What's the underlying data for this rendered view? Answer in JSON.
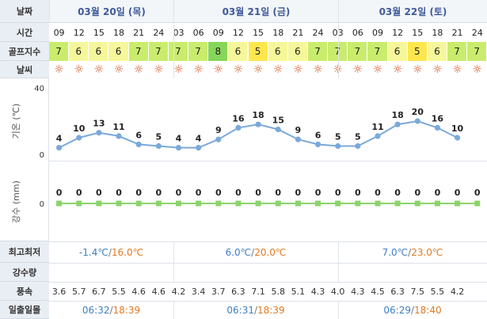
{
  "labels": {
    "date": "날짜",
    "time": "시간",
    "golf": "골프지수",
    "weather": "날씨",
    "temp_axis": "기온 (℃)",
    "rain_axis": "강수 (mm)",
    "minmax": "최고최저",
    "precip": "강수량",
    "wind": "풍속",
    "sun": "일출일몰"
  },
  "days": [
    {
      "label": "03월 20일 (목)",
      "min": "-1.4℃",
      "max": "16.0℃",
      "sunrise": "06:32",
      "sunset": "18:39"
    },
    {
      "label": "03월 21일 (금)",
      "min": "6.0℃",
      "max": "20.0℃",
      "sunrise": "06:31",
      "sunset": "18:39"
    },
    {
      "label": "03월 22일 (토)",
      "min": "7.0℃",
      "max": "23.0℃",
      "sunrise": "06:29",
      "sunset": "18:40"
    }
  ],
  "hours": [
    "09",
    "12",
    "15",
    "18",
    "21",
    "24",
    "03",
    "06",
    "09",
    "12",
    "15",
    "18",
    "21",
    "24",
    "03",
    "06",
    "09",
    "12",
    "15",
    "18",
    "21",
    "24"
  ],
  "golf_index": [
    7,
    6,
    6,
    6,
    7,
    7,
    7,
    7,
    8,
    6,
    5,
    6,
    6,
    7,
    7,
    7,
    7,
    6,
    5,
    6,
    7,
    7
  ],
  "golf_colors": {
    "5": "#fde74c",
    "6": "#f6f79a",
    "7": "#c9ec6d",
    "8": "#86d65a"
  },
  "weather_icon": "sun-icon",
  "weather_glyph": "☼",
  "wind": [
    "3.6",
    "5.7",
    "6.7",
    "5.5",
    "4.6",
    "4.6",
    "4.2",
    "3.4",
    "3.7",
    "6.3",
    "7.1",
    "5.8",
    "5.1",
    "4.3",
    "4.0",
    "4.3",
    "4.5",
    "6.3",
    "7.5",
    "5.5",
    "4.2",
    ""
  ],
  "chart_data": [
    {
      "type": "line",
      "ylabel": "기온 (℃)",
      "ylim": [
        0,
        40
      ],
      "y_ticks": [
        0,
        40
      ],
      "x": [
        "09",
        "12",
        "15",
        "18",
        "21",
        "24",
        "03",
        "06",
        "09",
        "12",
        "15",
        "18",
        "21",
        "24",
        "03",
        "06",
        "09",
        "12",
        "15",
        "18",
        "21"
      ],
      "values": [
        4,
        10,
        13,
        11,
        6,
        5,
        4,
        4,
        9,
        16,
        18,
        15,
        9,
        6,
        5,
        5,
        11,
        18,
        20,
        16,
        10
      ],
      "color": "#7aa9d9"
    },
    {
      "type": "line",
      "ylabel": "강수 (mm)",
      "y_ticks": [
        0
      ],
      "x": [
        "09",
        "12",
        "15",
        "18",
        "21",
        "24",
        "03",
        "06",
        "09",
        "12",
        "15",
        "18",
        "21",
        "24",
        "03",
        "06",
        "09",
        "12",
        "15",
        "18",
        "21",
        "24"
      ],
      "values": [
        0,
        0,
        0,
        0,
        0,
        0,
        0,
        0,
        0,
        0,
        0,
        0,
        0,
        0,
        0,
        0,
        0,
        0,
        0,
        0,
        0,
        0
      ],
      "color": "#8bd36b"
    }
  ]
}
